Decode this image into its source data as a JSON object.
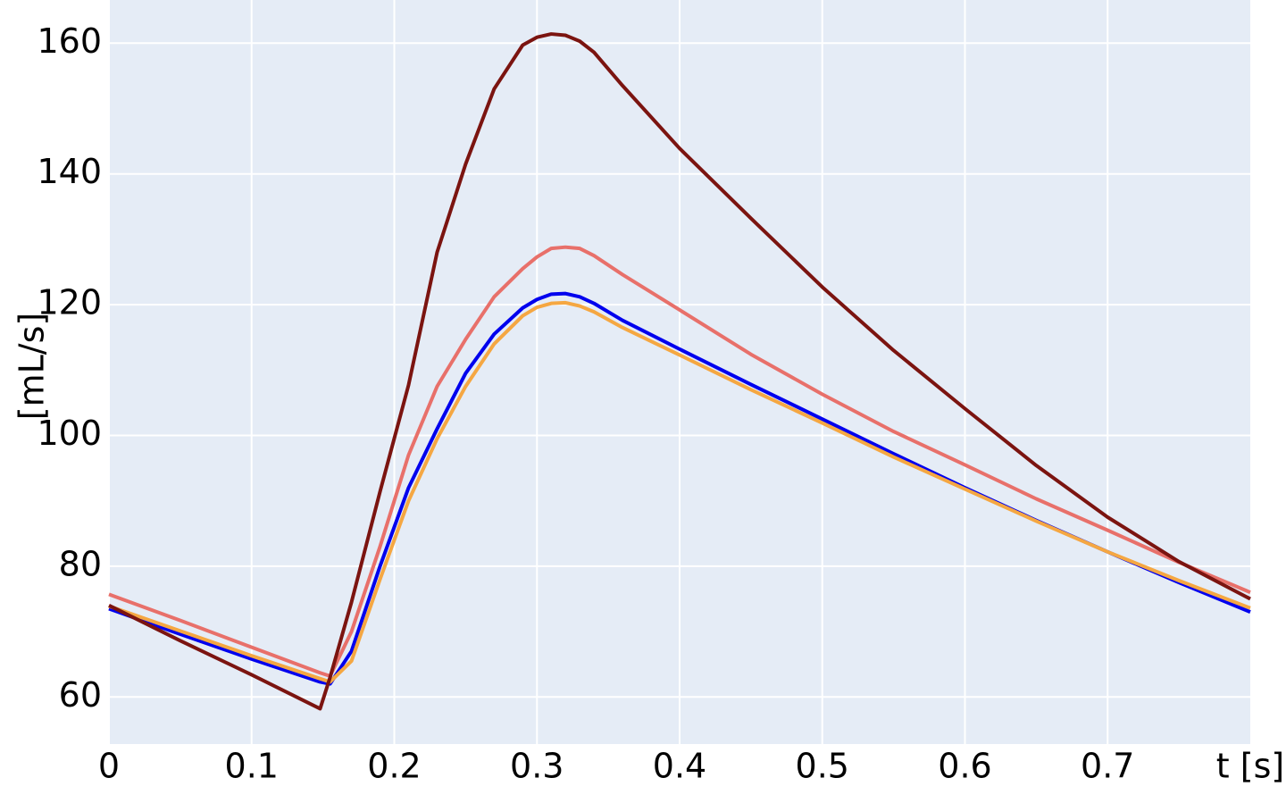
{
  "chart_data": {
    "type": "line",
    "x_label": "t [s]",
    "y_label": "[mL/s]",
    "x": [
      0,
      0.05,
      0.1,
      0.148,
      0.155,
      0.17,
      0.19,
      0.21,
      0.23,
      0.25,
      0.27,
      0.29,
      0.3,
      0.31,
      0.32,
      0.33,
      0.34,
      0.36,
      0.4,
      0.45,
      0.5,
      0.55,
      0.6,
      0.65,
      0.7,
      0.75,
      0.8
    ],
    "series": [
      {
        "color": "#e8706a",
        "values": [
          75.7,
          71.7,
          67.6,
          63.7,
          63.2,
          70,
          83,
          97,
          107.5,
          114.7,
          121.2,
          125.5,
          127.3,
          128.6,
          128.8,
          128.6,
          127.5,
          124.6,
          119.2,
          112.4,
          106.3,
          100.6,
          95.5,
          90.3,
          85.5,
          80.6,
          76
        ]
      },
      {
        "color": "#0000ee",
        "values": [
          73.5,
          69.6,
          65.8,
          62.3,
          62,
          67,
          80,
          92,
          101,
          109.5,
          115.5,
          119.5,
          120.8,
          121.6,
          121.7,
          121.2,
          120.2,
          117.6,
          113.2,
          107.8,
          102.5,
          97.2,
          92,
          87,
          82.2,
          77.5,
          73
        ]
      },
      {
        "color": "#f5a742",
        "values": [
          73.9,
          70.1,
          66.3,
          62.8,
          62.3,
          65.5,
          78,
          90,
          99.5,
          107.5,
          114,
          118.3,
          119.6,
          120.2,
          120.3,
          119.8,
          118.9,
          116.5,
          112.3,
          107,
          101.9,
          96.7,
          91.8,
          86.9,
          82.2,
          77.8,
          73.6
        ]
      },
      {
        "color": "#7b1410",
        "values": [
          74,
          68.6,
          63.4,
          58.2,
          63,
          74.5,
          91.4,
          107.7,
          128,
          141.5,
          153,
          159.7,
          160.9,
          161.4,
          161.2,
          160.3,
          158.6,
          153.5,
          143.9,
          133.2,
          122.7,
          113,
          104.1,
          95.4,
          87.5,
          80.7,
          75
        ]
      }
    ],
    "xlim": [
      0,
      0.8
    ],
    "ylim": [
      52.8,
      166.6
    ],
    "xticks": [
      0,
      0.1,
      0.2,
      0.3,
      0.4,
      0.5,
      0.6,
      0.7
    ],
    "yticks": [
      60,
      80,
      100,
      120,
      140,
      160
    ],
    "grid": true,
    "background": "#e5ecf6"
  }
}
